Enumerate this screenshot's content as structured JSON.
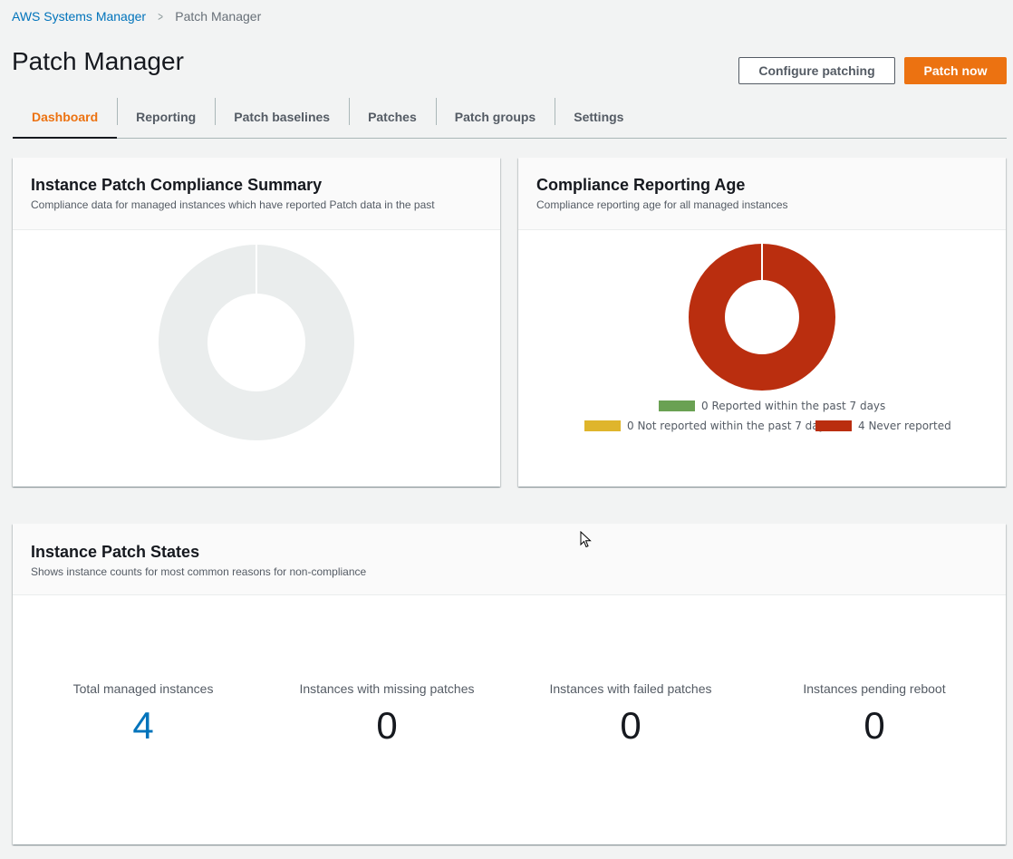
{
  "breadcrumb": {
    "root": "AWS Systems Manager",
    "separator": ">",
    "current": "Patch Manager"
  },
  "page": {
    "title": "Patch Manager"
  },
  "actions": {
    "configure": "Configure patching",
    "patch_now": "Patch now"
  },
  "tabs": [
    {
      "label": "Dashboard",
      "active": true
    },
    {
      "label": "Reporting"
    },
    {
      "label": "Patch baselines"
    },
    {
      "label": "Patches"
    },
    {
      "label": "Patch groups"
    },
    {
      "label": "Settings"
    }
  ],
  "summary": {
    "title": "Instance Patch Compliance Summary",
    "description": "Compliance data for managed instances which have reported Patch data in the past",
    "empty_color": "#eaeded"
  },
  "age": {
    "title": "Compliance Reporting Age",
    "description": "Compliance reporting age for all managed instances",
    "legend": [
      {
        "count": "0",
        "label": "Reported within the past 7 days",
        "color": "#6aa153"
      },
      {
        "count": "0",
        "label": "Not reported within the past 7 days",
        "color": "#dfb52c"
      },
      {
        "count": "4",
        "label": "Never reported",
        "color": "#ba2e0f"
      }
    ],
    "legend_text": [
      "0 Reported within the past 7 days",
      "0 Not reported within the past 7 days",
      "4 Never reported"
    ]
  },
  "states": {
    "title": "Instance Patch States",
    "description": "Shows instance counts for most common reasons for non-compliance",
    "stats": [
      {
        "label": "Total managed instances",
        "value": "4"
      },
      {
        "label": "Instances with missing patches",
        "value": "0"
      },
      {
        "label": "Instances with failed patches",
        "value": "0"
      },
      {
        "label": "Instances pending reboot",
        "value": "0"
      }
    ]
  },
  "colors": {
    "accent": "#ec7211",
    "link": "#0073bb"
  }
}
